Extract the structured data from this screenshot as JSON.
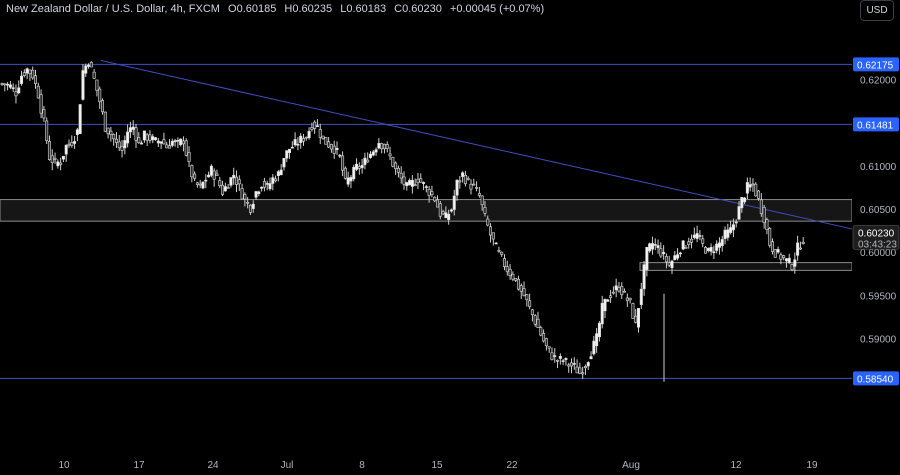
{
  "header": {
    "title": "New Zealand Dollar / U.S. Dollar, 4h, FXCM",
    "open": "O0.60185",
    "high": "H0.60235",
    "low": "L0.60183",
    "close": "C0.60230",
    "change": "+0.00045 (+0.07%)"
  },
  "currency_button": "USD",
  "chart_data": {
    "type": "candlestick",
    "x_tick_labels": [
      "10",
      "17",
      "24",
      "Jul",
      "8",
      "15",
      "22",
      "Aug",
      "12",
      "19"
    ],
    "y_tick_labels": [
      "0.62000",
      "0.61000",
      "0.60500",
      "0.60000",
      "0.59500",
      "0.59000"
    ],
    "y_ticks": [
      0.62,
      0.61,
      0.605,
      0.6,
      0.595,
      0.59
    ],
    "ylim": [
      0.5815,
      0.6262
    ],
    "levels": [
      {
        "label": "0.62175",
        "value": 0.62175
      },
      {
        "label": "0.61481",
        "value": 0.61481
      },
      {
        "label": "0.58540",
        "value": 0.5854
      }
    ],
    "resistance_zone": [
      0.6036,
      0.6061
    ],
    "support_zone": [
      0.5979,
      0.5988
    ],
    "trendline": {
      "from": {
        "date": "Jun 13",
        "value": 0.6222
      },
      "to": {
        "date": "Aug 21",
        "value": 0.6027
      }
    },
    "last_price": {
      "label": "0.60230",
      "value": 0.6023,
      "countdown": "03:43:23"
    },
    "colors": {
      "candle": "#e6e6e6",
      "level": "#3d4fc4",
      "label_bg": "#2962ff",
      "zone": "#7a7a7a"
    },
    "price_path": [
      [
        0.6195,
        0.6192,
        0.6185,
        0.6205,
        0.6212,
        0.6205,
        0.6183,
        0.615,
        0.611,
        0.6103,
        0.6105,
        0.6123,
        0.6128,
        0.614,
        0.621,
        0.6222
      ],
      [
        0.62,
        0.6175,
        0.6145,
        0.6137,
        0.6125,
        0.6118,
        0.614,
        0.6145,
        0.6125,
        0.6135,
        0.6132,
        0.6128,
        0.613,
        0.6122,
        0.6128,
        0.6125
      ],
      [
        0.613,
        0.61,
        0.608,
        0.6075,
        0.6085,
        0.6095,
        0.6085,
        0.607,
        0.608,
        0.609,
        0.6075,
        0.606,
        0.6052,
        0.607,
        0.608,
        0.6075
      ],
      [
        0.6085,
        0.609,
        0.611,
        0.612,
        0.6125,
        0.613,
        0.6135,
        0.6148,
        0.6145,
        0.613,
        0.6125,
        0.612,
        0.611,
        0.608,
        0.6088,
        0.6098
      ],
      [
        0.61,
        0.611,
        0.6118,
        0.6128,
        0.6122,
        0.611,
        0.6095,
        0.6085,
        0.6075,
        0.608,
        0.6085,
        0.6078,
        0.607,
        0.6062,
        0.6045,
        0.604
      ],
      [
        0.605,
        0.608,
        0.609,
        0.608,
        0.6075,
        0.6065,
        0.604,
        0.602,
        0.6005,
        0.5992,
        0.598,
        0.5972,
        0.596,
        0.595,
        0.5935,
        0.592
      ],
      [
        0.5905,
        0.589,
        0.588,
        0.5875,
        0.5875,
        0.587,
        0.5867,
        0.586,
        0.587,
        0.5885,
        0.59,
        0.5935,
        0.5948,
        0.5955,
        0.596,
        0.595
      ],
      [
        0.594,
        0.5915,
        0.596,
        0.6,
        0.601,
        0.6005,
        0.5995,
        0.5985,
        0.5995,
        0.6005,
        0.601,
        0.6015,
        0.602,
        0.6008,
        0.6,
        0.6005
      ],
      [
        0.601,
        0.602,
        0.6025,
        0.604,
        0.606,
        0.6075,
        0.6078,
        0.606,
        0.604,
        0.601,
        0.6,
        0.5995,
        0.599,
        0.5985,
        0.6005,
        0.6015
      ],
      [
        0.6023
      ]
    ]
  }
}
